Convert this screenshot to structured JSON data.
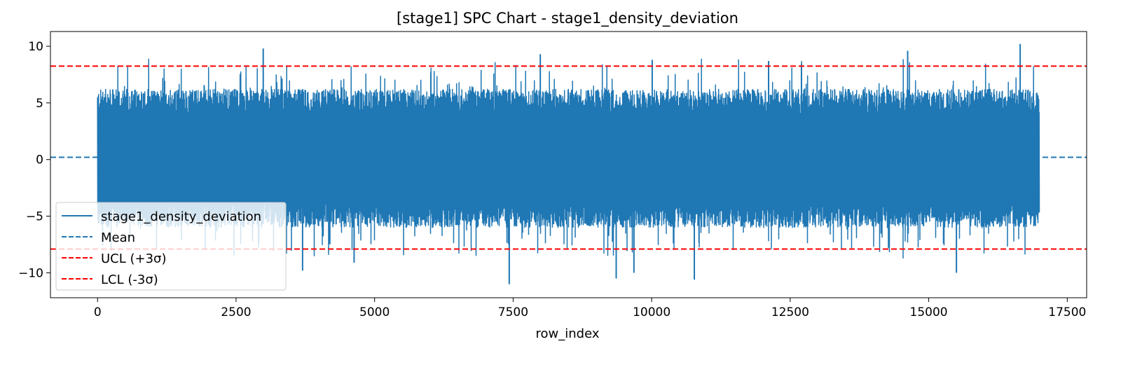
{
  "chart_data": {
    "type": "line",
    "title": "[stage1] SPC Chart - stage1_density_deviation",
    "xlabel": "row_index",
    "ylabel": "",
    "xlim": [
      -850,
      17850
    ],
    "ylim": [
      -12.2,
      11.3
    ],
    "x_ticks": [
      0,
      2500,
      5000,
      7500,
      10000,
      12500,
      15000,
      17500
    ],
    "x_tick_labels": [
      "0",
      "2500",
      "5000",
      "7500",
      "10000",
      "12500",
      "15000",
      "17500"
    ],
    "y_ticks": [
      10,
      5,
      0,
      -5,
      -10
    ],
    "y_tick_labels": [
      "10",
      "5",
      "0",
      "−5",
      "−10"
    ],
    "grid": false,
    "legend_position": "lower-left",
    "series": [
      {
        "name": "stage1_density_deviation",
        "style": "solid",
        "color": "#1f77b4",
        "x_range": [
          0,
          16999
        ],
        "typical_band": [
          -3.8,
          4.0
        ],
        "peaks": [
          {
            "x": 2990,
            "y": 9.8
          },
          {
            "x": 7990,
            "y": 9.3
          },
          {
            "x": 10010,
            "y": 8.8
          },
          {
            "x": 12110,
            "y": 8.7
          },
          {
            "x": 14620,
            "y": 9.6
          },
          {
            "x": 16650,
            "y": 10.2
          }
        ],
        "troughs": [
          {
            "x": 3700,
            "y": -9.8
          },
          {
            "x": 4630,
            "y": -9.1
          },
          {
            "x": 7430,
            "y": -11.0
          },
          {
            "x": 9360,
            "y": -10.5
          },
          {
            "x": 9680,
            "y": -10.0
          },
          {
            "x": 10770,
            "y": -10.6
          },
          {
            "x": 15500,
            "y": -10.0
          }
        ]
      },
      {
        "name": "Mean",
        "style": "dashed",
        "color": "#1f77b4",
        "value": 0.2
      },
      {
        "name": "UCL (+3σ)",
        "style": "dashed",
        "color": "#ff0000",
        "value": 8.25
      },
      {
        "name": "LCL (-3σ)",
        "style": "dashed",
        "color": "#ff0000",
        "value": -7.9
      }
    ]
  }
}
